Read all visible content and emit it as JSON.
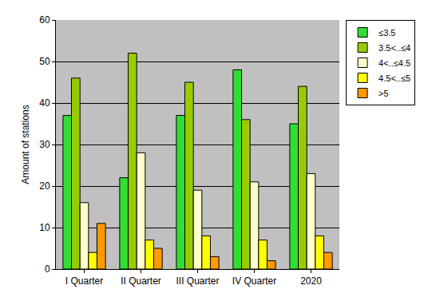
{
  "chart_data": {
    "type": "bar",
    "y_label": "Amount of stations",
    "categories": [
      "I Quarter",
      "II Quarter",
      "III Quarter",
      "IV Quarter",
      "2020"
    ],
    "series": [
      {
        "name": "≤3.5",
        "color": "#33dd33",
        "values": [
          37,
          22,
          37,
          48,
          35
        ]
      },
      {
        "name": "3.5<..≤4",
        "color": "#99cc00",
        "values": [
          46,
          52,
          45,
          36,
          44
        ]
      },
      {
        "name": "4<..≤4.5",
        "color": "#ffffcc",
        "values": [
          16,
          28,
          19,
          21,
          23
        ]
      },
      {
        "name": "4.5<..≤5",
        "color": "#ffff00",
        "values": [
          4,
          7,
          8,
          7,
          8
        ]
      },
      {
        "name": ">5",
        "color": "#ff9900",
        "values": [
          11,
          5,
          3,
          2,
          4
        ]
      }
    ],
    "ylim": [
      0,
      60
    ],
    "yticks": [
      0,
      10,
      20,
      30,
      40,
      50,
      60
    ],
    "grid": true,
    "legend": "top right"
  }
}
